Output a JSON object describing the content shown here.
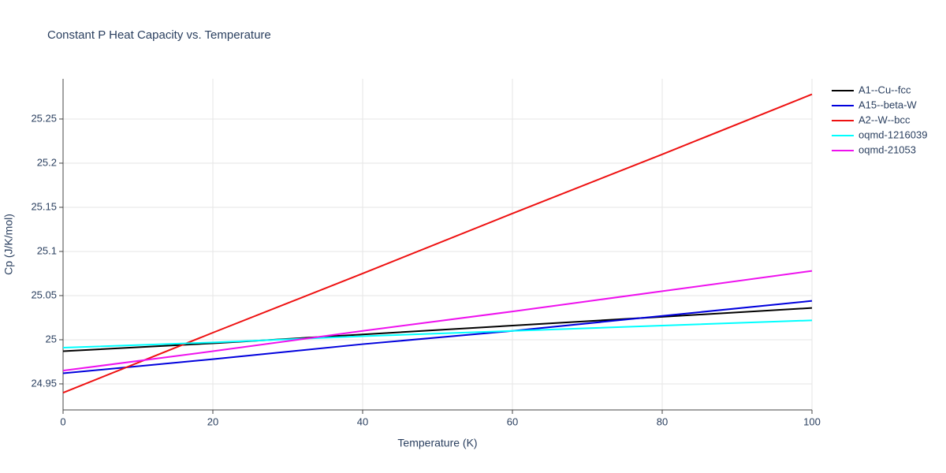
{
  "chart_data": {
    "type": "line",
    "title": "Constant P Heat Capacity vs. Temperature",
    "x_label": "Temperature (K)",
    "y_label": "Cp (J/K/mol)",
    "x": [
      0,
      20,
      40,
      60,
      80,
      100
    ],
    "series": [
      {
        "name": "A1--Cu--fcc",
        "color": "#000000",
        "values": [
          24.987,
          24.996,
          25.006,
          25.016,
          25.026,
          25.036
        ]
      },
      {
        "name": "A15--beta-W",
        "color": "#0000dd",
        "values": [
          24.962,
          24.978,
          24.995,
          25.01,
          25.027,
          25.044
        ]
      },
      {
        "name": "A2--W--bcc",
        "color": "#ee1111",
        "values": [
          24.94,
          25.008,
          25.075,
          25.143,
          25.21,
          25.278
        ]
      },
      {
        "name": "oqmd-1216039",
        "color": "#00ffff",
        "values": [
          24.991,
          24.997,
          25.004,
          25.01,
          25.016,
          25.022
        ]
      },
      {
        "name": "oqmd-21053",
        "color": "#ee11ee",
        "values": [
          24.965,
          24.987,
          25.01,
          25.032,
          25.055,
          25.078
        ]
      }
    ],
    "xlim": [
      0,
      100
    ],
    "xticks": [
      0,
      20,
      40,
      60,
      80,
      100
    ],
    "ylim": [
      24.9205,
      25.2955
    ],
    "yticks": [
      24.95,
      25,
      25.05,
      25.1,
      25.15,
      25.2,
      25.25
    ],
    "grid": true,
    "legend": "right"
  }
}
